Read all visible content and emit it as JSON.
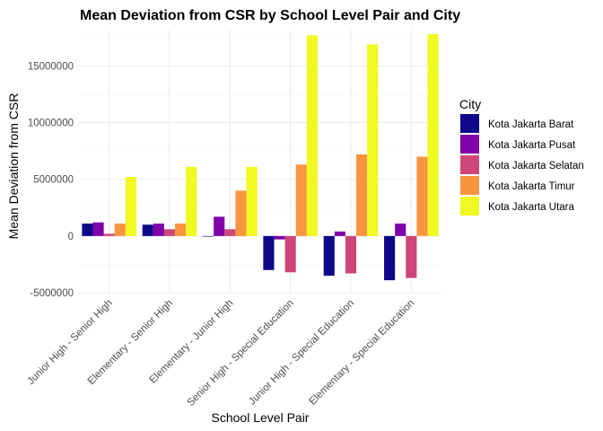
{
  "chart_data": {
    "type": "bar",
    "title": "Mean Deviation from CSR by School Level Pair and City",
    "xlabel": "School Level Pair",
    "ylabel": "Mean Deviation from CSR",
    "ylim": [
      -5000000,
      18200000
    ],
    "yticks": [
      -5000000,
      0,
      5000000,
      10000000,
      15000000
    ],
    "ytick_labels": [
      "-5000000",
      "0",
      "5000000",
      "10000000",
      "15000000"
    ],
    "grid": true,
    "legend_title": "City",
    "legend_position": "right",
    "categories": [
      "Junior High - Senior High",
      "Elementary - Senior High",
      "Elementary - Junior High",
      "Senior High - Special Education",
      "Junior High - Special Education",
      "Elementary - Special Education"
    ],
    "series": [
      {
        "name": "Kota Jakarta Barat",
        "color": "#0D0887",
        "values": [
          1100000,
          1000000,
          -50000,
          -3000000,
          -3500000,
          -3900000
        ]
      },
      {
        "name": "Kota Jakarta Pusat",
        "color": "#7E03A8",
        "values": [
          1200000,
          1100000,
          1700000,
          -300000,
          400000,
          1100000
        ]
      },
      {
        "name": "Kota Jakarta Selatan",
        "color": "#CC4778",
        "values": [
          200000,
          600000,
          600000,
          -3200000,
          -3300000,
          -3700000
        ]
      },
      {
        "name": "Kota Jakarta Timur",
        "color": "#F89540",
        "values": [
          1100000,
          1100000,
          4000000,
          6300000,
          7200000,
          7000000
        ]
      },
      {
        "name": "Kota Jakarta Utara",
        "color": "#F0F921",
        "values": [
          5200000,
          6100000,
          6100000,
          17700000,
          16900000,
          17800000
        ]
      }
    ]
  }
}
